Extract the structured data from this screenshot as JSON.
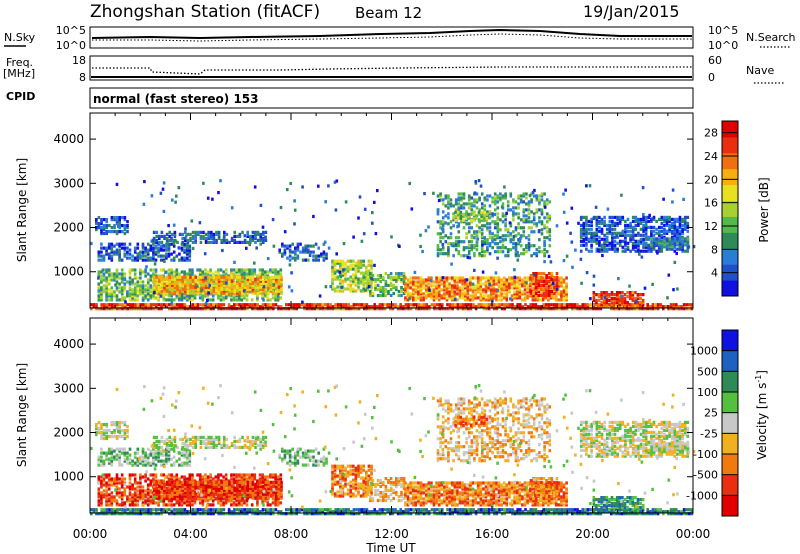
{
  "header": {
    "station": "Zhongshan Station (fitACF)",
    "beam": "Beam 12",
    "date": "19/Jan/2015"
  },
  "top_panels": {
    "nsky_label": "N.Sky",
    "nsky_ticks": [
      "10^5",
      "10^0"
    ],
    "nsearch_label": "N.Search",
    "nsearch_ticks": [
      "10^5",
      "10^0"
    ],
    "freq_label": "Freq.",
    "freq_unit": "[MHz]",
    "freq_ticks": [
      "18",
      "8"
    ],
    "nave_label": "Nave",
    "nave_ticks": [
      "60",
      "0"
    ],
    "cpid_label": "CPID",
    "cpid_value": "normal (fast stereo) 153"
  },
  "chart_data": [
    {
      "type": "heatmap",
      "quantity": "Power",
      "colorbar_label": "Power [dB]",
      "ylabel": "Slant Range [km]",
      "xlabel": "Time UT",
      "x_ticks": [
        "00:00",
        "04:00",
        "08:00",
        "12:00",
        "16:00",
        "20:00",
        "00:00"
      ],
      "y_ticks": [
        1000,
        2000,
        3000,
        4000
      ],
      "ylim": [
        180,
        4590
      ],
      "xlim_hours": [
        0,
        24
      ],
      "colorbar_ticks": [
        4,
        8,
        12,
        16,
        20,
        24,
        28
      ],
      "colorbar_range": [
        0,
        30
      ],
      "color_scale": [
        "#1010e0",
        "#2050c8",
        "#2a7cd6",
        "#2e8b57",
        "#55b84a",
        "#a8d030",
        "#e8e020",
        "#f5b010",
        "#f07010",
        "#e83010",
        "#e00000"
      ]
    },
    {
      "type": "heatmap",
      "quantity": "Velocity",
      "colorbar_label": "Velocity [m s^-1]",
      "ylabel": "Slant Range [km]",
      "xlabel": "Time UT",
      "x_ticks": [
        "00:00",
        "04:00",
        "08:00",
        "12:00",
        "16:00",
        "20:00",
        "00:00"
      ],
      "y_ticks": [
        1000,
        2000,
        3000,
        4000
      ],
      "ylim": [
        180,
        4590
      ],
      "xlim_hours": [
        0,
        24
      ],
      "colorbar_ticks": [
        "1000",
        "500",
        "100",
        "25",
        "-25",
        "-100",
        "-500",
        "-1000"
      ],
      "color_scale": [
        "#1010e0",
        "#2060c0",
        "#2e8b57",
        "#55c040",
        "#c8c8c8",
        "#f0b020",
        "#f07a10",
        "#e83010",
        "#e00000"
      ]
    }
  ]
}
